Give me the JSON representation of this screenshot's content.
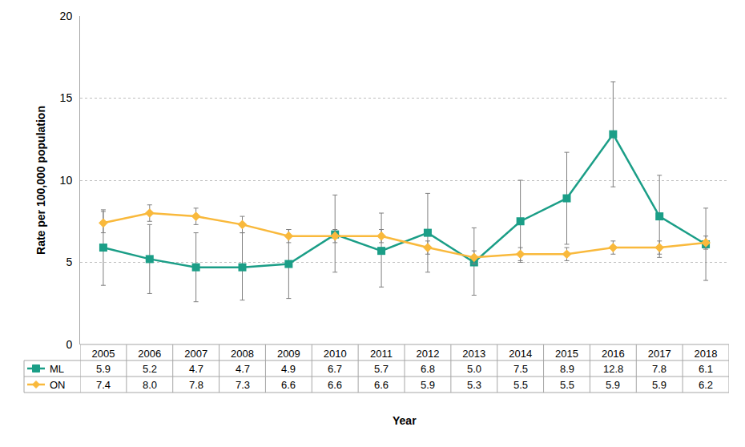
{
  "chart_data": {
    "type": "line",
    "x_label": "Year",
    "y_label": "Rate per 100,000 population",
    "categories": [
      "2005",
      "2006",
      "2007",
      "2008",
      "2009",
      "2010",
      "2011",
      "2012",
      "2013",
      "2014",
      "2015",
      "2016",
      "2017",
      "2018"
    ],
    "series": [
      {
        "name": "ML",
        "color": "#1b9e87",
        "marker": "square",
        "values": [
          5.9,
          5.2,
          4.7,
          4.7,
          4.9,
          6.7,
          5.7,
          6.8,
          5.0,
          7.5,
          8.9,
          12.8,
          7.8,
          6.1
        ],
        "value_labels": [
          "5.9",
          "5.2",
          "4.7",
          "4.7",
          "4.9",
          "6.7",
          "5.7",
          "6.8",
          "5.0",
          "7.5",
          "8.9",
          "12.8",
          "7.8",
          "6.1"
        ],
        "error_low": [
          3.6,
          3.1,
          2.6,
          2.7,
          2.8,
          4.4,
          3.5,
          4.4,
          3.0,
          5.0,
          6.1,
          9.6,
          5.3,
          3.9
        ],
        "error_high": [
          8.2,
          7.3,
          6.8,
          6.8,
          7.0,
          9.1,
          8.0,
          9.2,
          7.1,
          10.0,
          11.7,
          16.0,
          10.3,
          8.3
        ]
      },
      {
        "name": "ON",
        "color": "#f9b93c",
        "marker": "diamond",
        "values": [
          7.4,
          8.0,
          7.8,
          7.3,
          6.6,
          6.6,
          6.6,
          5.9,
          5.3,
          5.5,
          5.5,
          5.9,
          5.9,
          6.2
        ],
        "value_labels": [
          "7.4",
          "8.0",
          "7.8",
          "7.3",
          "6.6",
          "6.6",
          "6.6",
          "5.9",
          "5.3",
          "5.5",
          "5.5",
          "5.9",
          "5.9",
          "6.2"
        ],
        "error_low": [
          6.8,
          7.5,
          7.3,
          6.8,
          6.2,
          6.2,
          6.2,
          5.5,
          4.9,
          5.1,
          5.1,
          5.5,
          5.5,
          5.8
        ],
        "error_high": [
          8.1,
          8.5,
          8.3,
          7.8,
          7.0,
          7.0,
          7.0,
          6.3,
          5.7,
          5.9,
          5.9,
          6.3,
          6.3,
          6.6
        ]
      }
    ],
    "ylim": [
      0,
      20
    ],
    "yticks": [
      0,
      5,
      10,
      15,
      20
    ],
    "grid": true
  }
}
